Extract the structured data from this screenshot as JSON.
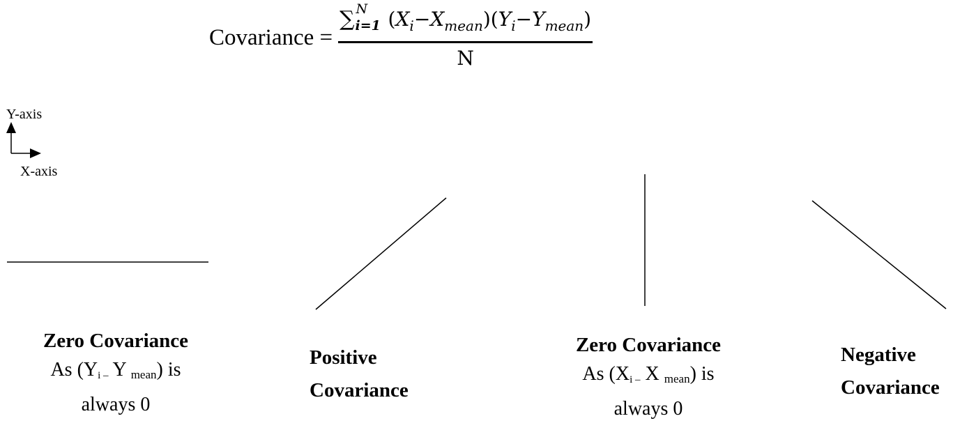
{
  "formula": {
    "lhs": "Covariance =",
    "sum_symbol": "∑",
    "sum_upper": "N",
    "sum_lower": "i=1",
    "paren_open": "(",
    "paren_close": ")",
    "minus": "−",
    "x_var": "X",
    "y_var": "Y",
    "sub_i": "i",
    "sub_mean": "mean",
    "denominator": "N"
  },
  "axis_legend": {
    "y_label": "Y-axis",
    "x_label": "X-axis"
  },
  "panels": [
    {
      "title": "Zero Covariance",
      "desc_prefix": "As (Y",
      "desc_sub_i": "i –",
      "desc_mid": " Y ",
      "desc_sub_mean": "mean",
      "desc_suffix": ") is",
      "desc_line2": "always 0"
    },
    {
      "title_line1": "Positive",
      "title_line2": "Covariance"
    },
    {
      "title": "Zero Covariance",
      "desc_prefix": "As (X",
      "desc_sub_i": "i –",
      "desc_mid": " X ",
      "desc_sub_mean": "mean",
      "desc_suffix": ") is",
      "desc_line2": "always 0"
    },
    {
      "title_line1": "Negative",
      "title_line2": "Covariance"
    }
  ],
  "colors": {
    "background": "#ffffff",
    "ink": "#000000"
  }
}
